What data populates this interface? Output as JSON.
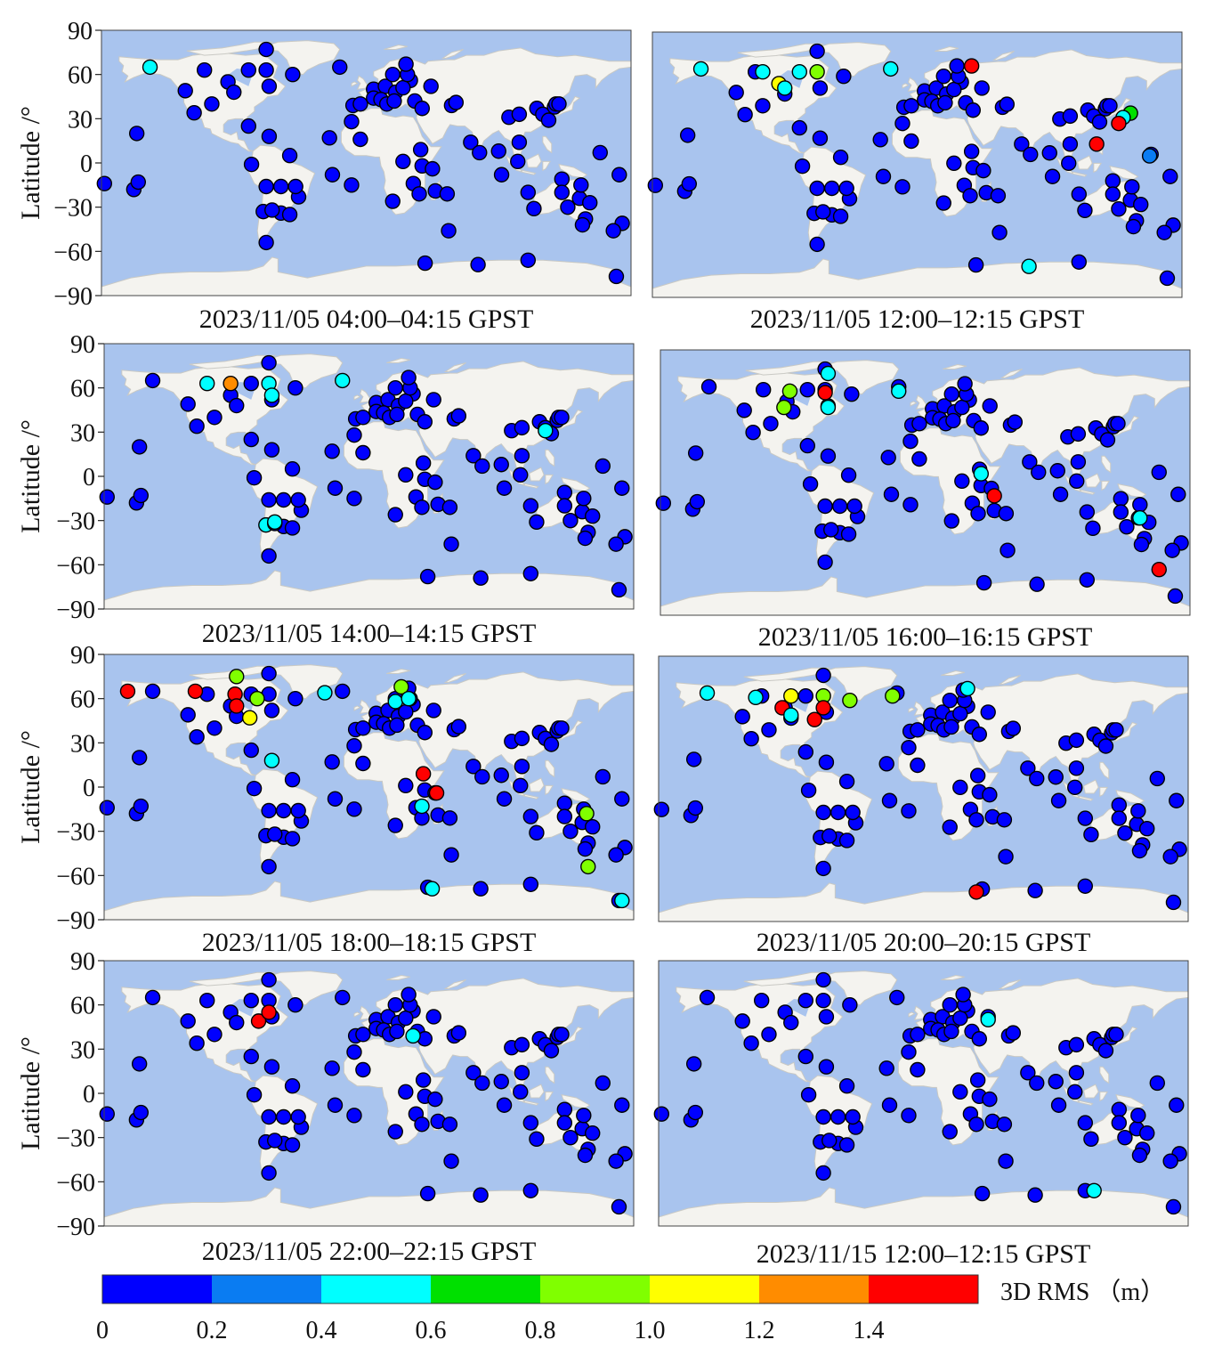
{
  "chart_data": {
    "type": "scatter",
    "ylabel": "Latitude /°",
    "y_ticks": [
      90,
      60,
      30,
      0,
      -30,
      -60,
      -90
    ],
    "y_tick_labels": [
      "90",
      "60",
      "30",
      "0",
      "−30",
      "−60",
      "−90"
    ],
    "ylim": [
      -90,
      90
    ],
    "xlim": [
      -180,
      180
    ],
    "colorbar": {
      "title": "3D RMS （m）",
      "boundaries": [
        0,
        0.2,
        0.4,
        0.6,
        0.8,
        1.0,
        1.2,
        1.4,
        1.6
      ],
      "tick_labels": [
        "0",
        "0.2",
        "0.4",
        "0.6",
        "0.8",
        "1.0",
        "1.2",
        "1.4"
      ],
      "colors": [
        "#0000ff",
        "#0a7cf2",
        "#00ffff",
        "#00e000",
        "#80ff00",
        "#ffff00",
        "#ff8c00",
        "#ff0000"
      ]
    },
    "stations": [
      [
        -147,
        65
      ],
      [
        -156,
        20
      ],
      [
        -178,
        -14
      ],
      [
        -158,
        -18
      ],
      [
        -123,
        49
      ],
      [
        -117,
        34
      ],
      [
        -105,
        40
      ],
      [
        -110,
        63
      ],
      [
        -94,
        55
      ],
      [
        -80,
        63
      ],
      [
        -90,
        48
      ],
      [
        -68,
        77
      ],
      [
        -68,
        63
      ],
      [
        -66,
        52
      ],
      [
        -80,
        25
      ],
      [
        -66,
        18
      ],
      [
        -52,
        5
      ],
      [
        -78,
        -1
      ],
      [
        -68,
        -16
      ],
      [
        -58,
        -16
      ],
      [
        -70,
        -33
      ],
      [
        -58,
        -34
      ],
      [
        -64,
        -32
      ],
      [
        -46,
        -23
      ],
      [
        -48,
        -16
      ],
      [
        -52,
        -35
      ],
      [
        -68,
        -54
      ],
      [
        -50,
        60
      ],
      [
        -18,
        65
      ],
      [
        -9,
        39
      ],
      [
        -4,
        40
      ],
      [
        -25,
        17
      ],
      [
        -10,
        28
      ],
      [
        -4,
        16
      ],
      [
        -23,
        -8
      ],
      [
        -10,
        -15
      ],
      [
        5,
        50
      ],
      [
        5,
        44
      ],
      [
        13,
        52
      ],
      [
        20,
        48
      ],
      [
        18,
        60
      ],
      [
        10,
        43
      ],
      [
        14,
        40
      ],
      [
        30,
        56
      ],
      [
        25,
        51
      ],
      [
        28,
        60
      ],
      [
        27,
        67
      ],
      [
        19,
        42
      ],
      [
        33,
        42
      ],
      [
        38,
        37
      ],
      [
        44,
        52
      ],
      [
        25,
        1
      ],
      [
        18,
        -26
      ],
      [
        37,
        9
      ],
      [
        38,
        -2
      ],
      [
        32,
        -14
      ],
      [
        36,
        -21
      ],
      [
        47,
        -19
      ],
      [
        45,
        -4
      ],
      [
        55,
        -21
      ],
      [
        58,
        39
      ],
      [
        56,
        -46
      ],
      [
        71,
        14
      ],
      [
        61,
        41
      ],
      [
        77,
        7
      ],
      [
        92,
        -8
      ],
      [
        97,
        31
      ],
      [
        90,
        8
      ],
      [
        104,
        14
      ],
      [
        104,
        33
      ],
      [
        103,
        1
      ],
      [
        110,
        -20
      ],
      [
        114,
        -31
      ],
      [
        116,
        37
      ],
      [
        120,
        33
      ],
      [
        124,
        29
      ],
      [
        128,
        38
      ],
      [
        129,
        40
      ],
      [
        131,
        40
      ],
      [
        133,
        -11
      ],
      [
        133,
        -20
      ],
      [
        137,
        -30
      ],
      [
        145,
        -24
      ],
      [
        146,
        -15
      ],
      [
        149,
        -38
      ],
      [
        152,
        -27
      ],
      [
        147,
        -42
      ],
      [
        159,
        7
      ],
      [
        172,
        -8
      ],
      [
        174,
        -41
      ],
      [
        168,
        -46
      ],
      [
        170,
        -77
      ],
      [
        110,
        -66
      ],
      [
        76,
        -69
      ],
      [
        40,
        -68
      ],
      [
        -155,
        -13
      ]
    ],
    "panels": [
      {
        "caption": "2023/11/05 04:00–04:15 GPST",
        "anomalies": [
          [
            -147,
            65,
            0.5
          ]
        ]
      },
      {
        "caption": "2023/11/05 12:00–12:15 GPST",
        "anomalies": [
          [
            -147,
            65,
            0.5
          ],
          [
            -105,
            63,
            0.5
          ],
          [
            -94,
            55,
            1.1
          ],
          [
            -90,
            52,
            0.5
          ],
          [
            -80,
            63,
            0.5
          ],
          [
            -68,
            63,
            0.9
          ],
          [
            -18,
            65,
            0.5
          ],
          [
            37,
            67,
            1.5
          ],
          [
            145,
            35,
            0.7
          ],
          [
            140,
            32,
            0.5
          ],
          [
            122,
            14,
            1.5
          ],
          [
            137,
            28,
            1.5
          ],
          [
            158,
            6,
            0.3
          ],
          [
            76,
            -69,
            0.5
          ]
        ]
      },
      {
        "caption": "2023/11/05 14:00–14:15 GPST",
        "anomalies": [
          [
            -110,
            63,
            0.5
          ],
          [
            -94,
            63,
            1.3
          ],
          [
            -68,
            63,
            0.5
          ],
          [
            -66,
            55,
            0.5
          ],
          [
            -18,
            65,
            0.5
          ],
          [
            120,
            31,
            0.5
          ],
          [
            -70,
            -33,
            0.5
          ],
          [
            -64,
            -31,
            0.5
          ]
        ]
      },
      {
        "caption": "2023/11/05 16:00–16:15 GPST",
        "anomalies": [
          [
            -92,
            62,
            0.9
          ],
          [
            -96,
            51,
            0.9
          ],
          [
            -66,
            74,
            0.5
          ],
          [
            -68,
            61,
            1.5
          ],
          [
            -66,
            51,
            0.5
          ],
          [
            -18,
            62,
            0.5
          ],
          [
            38,
            6,
            0.5
          ],
          [
            47,
            -9,
            1.5
          ],
          [
            146,
            -24,
            0.5
          ],
          [
            159,
            -59,
            1.5
          ]
        ]
      },
      {
        "caption": "2023/11/05 18:00–18:15 GPST",
        "anomalies": [
          [
            -164,
            65,
            1.5
          ],
          [
            -118,
            65,
            1.5
          ],
          [
            -90,
            75,
            0.9
          ],
          [
            -91,
            63,
            1.5
          ],
          [
            -90,
            55,
            1.5
          ],
          [
            -76,
            60,
            0.9
          ],
          [
            -81,
            47,
            1.1
          ],
          [
            -66,
            18,
            0.5
          ],
          [
            -30,
            64,
            0.5
          ],
          [
            18,
            58,
            0.5
          ],
          [
            22,
            68,
            0.9
          ],
          [
            27,
            60,
            0.5
          ],
          [
            37,
            9,
            1.5
          ],
          [
            46,
            -4,
            1.5
          ],
          [
            36,
            -13,
            0.5
          ],
          [
            148,
            -18,
            0.9
          ],
          [
            149,
            -54,
            0.9
          ],
          [
            172,
            -77,
            0.5
          ],
          [
            43,
            -69,
            0.5
          ]
        ]
      },
      {
        "caption": "2023/11/05 20:00–20:15 GPST",
        "anomalies": [
          [
            -147,
            65,
            0.5
          ],
          [
            -114,
            62,
            0.5
          ],
          [
            -90,
            63,
            1.1
          ],
          [
            -96,
            55,
            1.5
          ],
          [
            -90,
            50,
            0.5
          ],
          [
            -74,
            47,
            1.5
          ],
          [
            -68,
            55,
            1.5
          ],
          [
            -68,
            63,
            0.9
          ],
          [
            -50,
            60,
            0.9
          ],
          [
            -21,
            63,
            0.9
          ],
          [
            30,
            68,
            0.5
          ],
          [
            36,
            -70,
            1.5
          ]
        ]
      },
      {
        "caption": "2023/11/05 22:00–22:15 GPST",
        "anomalies": [
          [
            -75,
            49,
            1.5
          ],
          [
            -68,
            55,
            1.5
          ],
          [
            30,
            39,
            0.5
          ]
        ]
      },
      {
        "caption": "2023/11/15 12:00–12:15 GPST",
        "anomalies": [
          [
            44,
            50,
            0.5
          ],
          [
            116,
            -66,
            0.5
          ]
        ]
      }
    ]
  }
}
